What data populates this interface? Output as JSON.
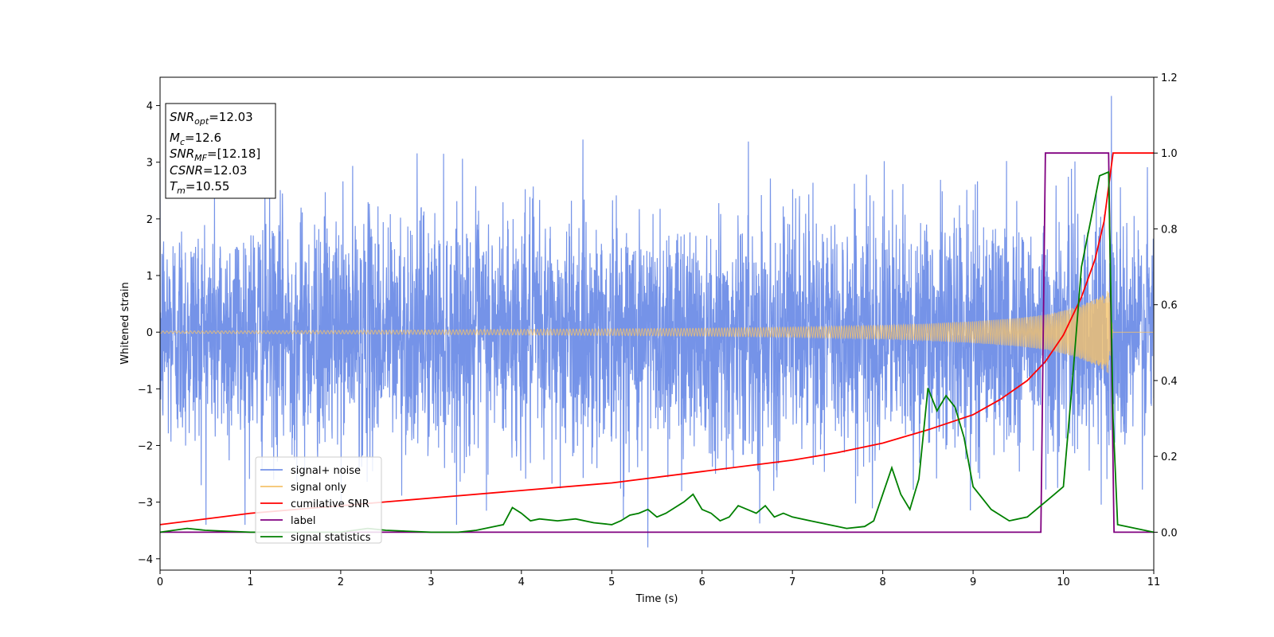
{
  "chart_data": {
    "type": "line",
    "xlabel": "Time (s)",
    "ylabel": "Whitened strain",
    "xlim": [
      0,
      11
    ],
    "ylim_left": [
      -4.2,
      4.5
    ],
    "ylim_right": [
      -0.1,
      1.2
    ],
    "x_ticks": [
      0,
      1,
      2,
      3,
      4,
      5,
      6,
      7,
      8,
      9,
      10,
      11
    ],
    "y_ticks_left": [
      -4,
      -3,
      -2,
      -1,
      0,
      1,
      2,
      3,
      4
    ],
    "y_ticks_right": [
      0.0,
      0.2,
      0.4,
      0.6,
      0.8,
      1.0,
      1.2
    ],
    "legend_position": "lower-left",
    "grid": false,
    "annotation": {
      "snr_opt_label": "SNR",
      "snr_opt_sub": "opt",
      "snr_opt_value": "=12.03",
      "mc_label": "M",
      "mc_sub": "c",
      "mc_value": "=12.6",
      "snr_mf_label": "SNR",
      "snr_mf_sub": "MF",
      "snr_mf_value": "=[12.18]",
      "csnr_label": "CSNR",
      "csnr_value": "=12.03",
      "tm_label": "T",
      "tm_sub": "m",
      "tm_value": "=10.55"
    },
    "series": [
      {
        "name": "signal+ noise",
        "axis": "left",
        "color": "#7593e8",
        "description_range": [
          -3.8,
          4.2
        ],
        "spike_max": {
          "x": 10.53,
          "y": 4.17
        },
        "spike_min": {
          "x": 5.4,
          "y": -3.8
        }
      },
      {
        "name": "signal only",
        "axis": "left",
        "color": "#f5c36b",
        "envelope": {
          "x": [
            0,
            2,
            4,
            6,
            7,
            8,
            8.5,
            9,
            9.5,
            9.8,
            10.0,
            10.2,
            10.4,
            10.5,
            10.55,
            11
          ],
          "y": [
            0.02,
            0.03,
            0.05,
            0.07,
            0.09,
            0.12,
            0.15,
            0.19,
            0.25,
            0.31,
            0.38,
            0.48,
            0.62,
            0.75,
            0.0,
            0.0
          ]
        }
      },
      {
        "name": "cumilative SNR",
        "axis": "right",
        "color": "#ff0000",
        "x": [
          0,
          1,
          2,
          3,
          4,
          5,
          6,
          7,
          7.5,
          8,
          8.5,
          9,
          9.3,
          9.6,
          9.8,
          10.0,
          10.2,
          10.35,
          10.45,
          10.55,
          11
        ],
        "y": [
          0.02,
          0.05,
          0.07,
          0.09,
          0.11,
          0.13,
          0.16,
          0.19,
          0.21,
          0.235,
          0.27,
          0.31,
          0.35,
          0.4,
          0.45,
          0.52,
          0.62,
          0.72,
          0.82,
          1.0,
          1.0
        ]
      },
      {
        "name": "label",
        "axis": "right",
        "color": "#800080",
        "x": [
          0,
          9.75,
          9.8,
          10.5,
          10.56,
          11
        ],
        "y": [
          0,
          0,
          1,
          1,
          0,
          0
        ]
      },
      {
        "name": "signal statistics",
        "axis": "right",
        "color": "#008000",
        "x": [
          0,
          0.3,
          0.5,
          1,
          1.5,
          2,
          2.3,
          2.5,
          3,
          3.3,
          3.5,
          3.7,
          3.8,
          3.9,
          4.0,
          4.1,
          4.2,
          4.4,
          4.6,
          4.8,
          5.0,
          5.1,
          5.2,
          5.3,
          5.4,
          5.5,
          5.6,
          5.8,
          5.9,
          6.0,
          6.1,
          6.2,
          6.3,
          6.4,
          6.5,
          6.6,
          6.7,
          6.8,
          6.9,
          7.0,
          7.2,
          7.4,
          7.6,
          7.8,
          7.9,
          8.0,
          8.1,
          8.2,
          8.3,
          8.4,
          8.5,
          8.6,
          8.7,
          8.8,
          8.9,
          9.0,
          9.2,
          9.4,
          9.6,
          9.7,
          9.8,
          9.9,
          10.0,
          10.1,
          10.2,
          10.3,
          10.4,
          10.5,
          10.55,
          10.6,
          11
        ],
        "y": [
          0,
          0.01,
          0.005,
          0,
          0,
          0,
          0.01,
          0.005,
          0,
          0,
          0.005,
          0.015,
          0.02,
          0.065,
          0.05,
          0.03,
          0.035,
          0.03,
          0.035,
          0.025,
          0.02,
          0.03,
          0.045,
          0.05,
          0.06,
          0.04,
          0.05,
          0.08,
          0.1,
          0.06,
          0.05,
          0.03,
          0.04,
          0.07,
          0.06,
          0.05,
          0.07,
          0.04,
          0.05,
          0.04,
          0.03,
          0.02,
          0.01,
          0.015,
          0.03,
          0.1,
          0.17,
          0.1,
          0.06,
          0.14,
          0.38,
          0.32,
          0.36,
          0.33,
          0.25,
          0.12,
          0.06,
          0.03,
          0.04,
          0.06,
          0.08,
          0.1,
          0.12,
          0.4,
          0.7,
          0.82,
          0.94,
          0.95,
          0.3,
          0.02,
          0.0
        ]
      }
    ]
  }
}
